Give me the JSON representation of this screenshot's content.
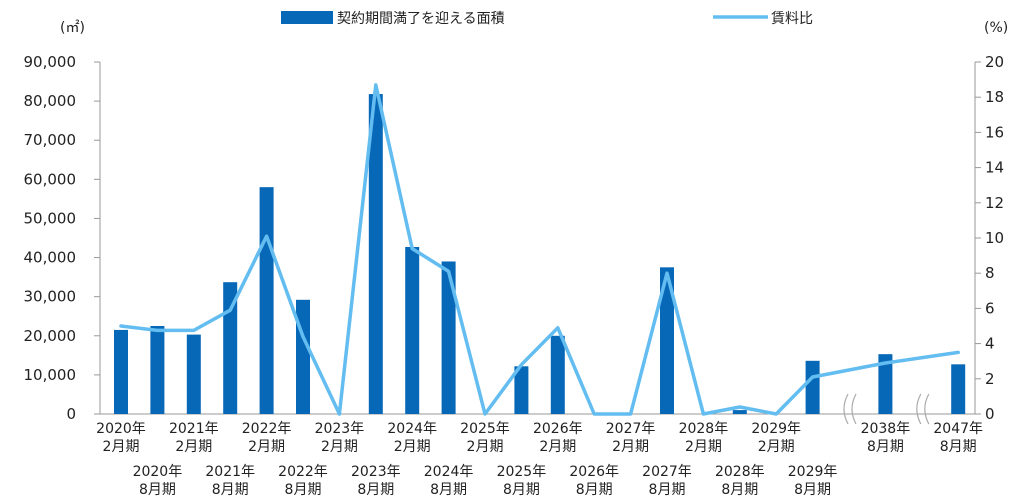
{
  "chart_data": {
    "type": "bar+line",
    "left_unit": "(㎡)",
    "right_unit": "(%)",
    "legend": {
      "bar_label": "契約期間満了を迎える面積",
      "line_label": "賃料比",
      "placement": "top-center"
    },
    "colors": {
      "bar": "#0868b8",
      "line": "#63bdf0",
      "axis": "#999999"
    },
    "y_left": {
      "min": 0,
      "max": 90000,
      "ticks": [
        "0",
        "10,000",
        "20,000",
        "30,000",
        "40,000",
        "50,000",
        "60,000",
        "70,000",
        "80,000",
        "90,000"
      ]
    },
    "y_right": {
      "min": 0,
      "max": 20,
      "ticks": [
        "0",
        "2",
        "4",
        "6",
        "8",
        "10",
        "12",
        "14",
        "16",
        "18",
        "20"
      ]
    },
    "categories": [
      {
        "year": "2020年",
        "period": "2月期"
      },
      {
        "year": "2020年",
        "period": "8月期"
      },
      {
        "year": "2021年",
        "period": "2月期"
      },
      {
        "year": "2021年",
        "period": "8月期"
      },
      {
        "year": "2022年",
        "period": "2月期"
      },
      {
        "year": "2022年",
        "period": "8月期"
      },
      {
        "year": "2023年",
        "period": "2月期"
      },
      {
        "year": "2023年",
        "period": "8月期"
      },
      {
        "year": "2024年",
        "period": "2月期"
      },
      {
        "year": "2024年",
        "period": "8月期"
      },
      {
        "year": "2025年",
        "period": "2月期"
      },
      {
        "year": "2025年",
        "period": "8月期"
      },
      {
        "year": "2026年",
        "period": "2月期"
      },
      {
        "year": "2026年",
        "period": "8月期"
      },
      {
        "year": "2027年",
        "period": "2月期"
      },
      {
        "year": "2027年",
        "period": "8月期"
      },
      {
        "year": "2028年",
        "period": "2月期"
      },
      {
        "year": "2028年",
        "period": "8月期"
      },
      {
        "year": "2029年",
        "period": "2月期"
      },
      {
        "year": "2029年",
        "period": "8月期"
      },
      {
        "year": "",
        "period": ""
      },
      {
        "year": "2038年",
        "period": "8月期"
      },
      {
        "year": "",
        "period": ""
      },
      {
        "year": "2047年",
        "period": "8月期"
      }
    ],
    "area_values": [
      21500,
      22500,
      20300,
      33700,
      58000,
      29200,
      0,
      81800,
      42700,
      39000,
      0,
      12200,
      20000,
      0,
      0,
      37500,
      0,
      1000,
      0,
      13600,
      null,
      15300,
      null,
      12700
    ],
    "rent_ratio_values": [
      5.0,
      4.75,
      4.75,
      5.9,
      10.1,
      4.4,
      0,
      18.7,
      9.4,
      8.1,
      0,
      2.8,
      4.9,
      0,
      0,
      8.0,
      0,
      0.4,
      0,
      2.1,
      null,
      2.9,
      null,
      3.5
    ],
    "axis_breaks": [
      20,
      22
    ]
  }
}
